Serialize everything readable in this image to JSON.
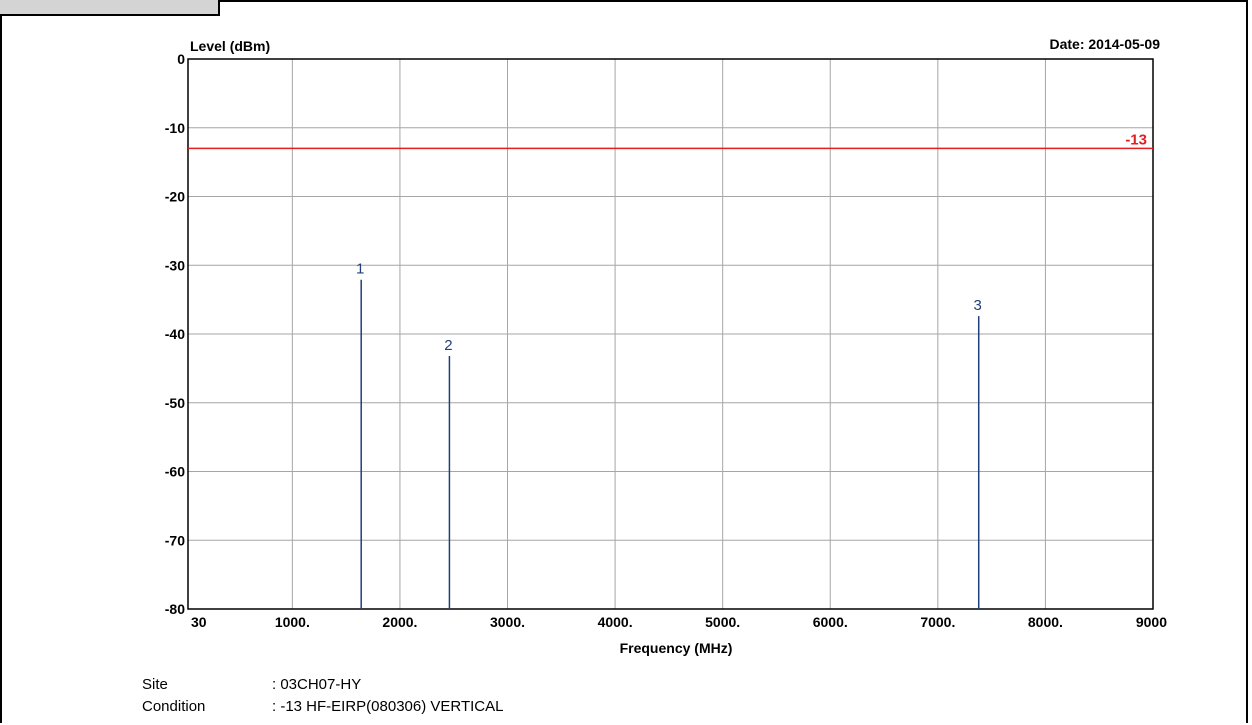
{
  "chart_data": {
    "type": "bar",
    "ylabel": "Level (dBm)",
    "xlabel": "Frequency (MHz)",
    "date_label": "Date: 2014-05-09",
    "xlim": [
      30,
      9000
    ],
    "ylim": [
      -80,
      0
    ],
    "x_ticks": [
      {
        "value": 30,
        "label": "30"
      },
      {
        "value": 1000,
        "label": "1000."
      },
      {
        "value": 2000,
        "label": "2000."
      },
      {
        "value": 3000,
        "label": "3000."
      },
      {
        "value": 4000,
        "label": "4000."
      },
      {
        "value": 5000,
        "label": "5000."
      },
      {
        "value": 6000,
        "label": "6000."
      },
      {
        "value": 7000,
        "label": "7000."
      },
      {
        "value": 8000,
        "label": "8000."
      },
      {
        "value": 9000,
        "label": "9000"
      }
    ],
    "y_ticks": [
      {
        "value": 0,
        "label": "0"
      },
      {
        "value": -10,
        "label": "-10"
      },
      {
        "value": -20,
        "label": "-20"
      },
      {
        "value": -30,
        "label": "-30"
      },
      {
        "value": -40,
        "label": "-40"
      },
      {
        "value": -50,
        "label": "-50"
      },
      {
        "value": -60,
        "label": "-60"
      },
      {
        "value": -70,
        "label": "-70"
      },
      {
        "value": -80,
        "label": "-80"
      }
    ],
    "limit_line": {
      "value": -13,
      "label": "-13",
      "color": "#e41f1f"
    },
    "points": [
      {
        "label": "1",
        "x": 1640,
        "y": -32.1
      },
      {
        "label": "2",
        "x": 2460,
        "y": -43.2
      },
      {
        "label": "3",
        "x": 7380,
        "y": -37.4
      }
    ],
    "grid": true,
    "colors": {
      "grid": "#a6a6a6",
      "axis": "#000000",
      "marker": "#1f3f7a"
    }
  },
  "info": [
    {
      "key": "Site",
      "value": ": 03CH07-HY"
    },
    {
      "key": "Condition",
      "value": ": -13 HF-EIRP(080306) VERTICAL"
    }
  ]
}
